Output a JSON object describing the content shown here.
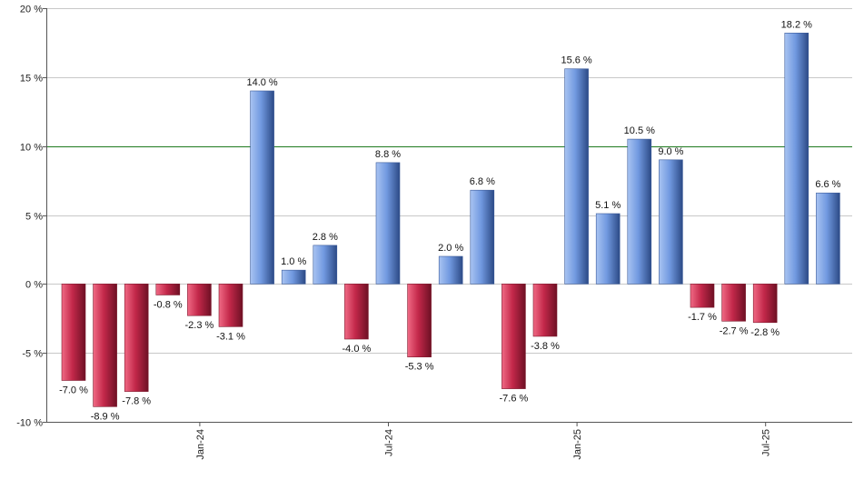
{
  "chart_data": {
    "type": "bar",
    "title": "",
    "xlabel": "",
    "ylabel": "",
    "ylim": [
      -10,
      20
    ],
    "y_ticks": [
      20,
      15,
      10,
      5,
      0,
      -5,
      -10
    ],
    "y_tick_suffix": " %",
    "grid": true,
    "reference_line": {
      "value": 10,
      "color": "#1e7a1e"
    },
    "positive_color": "#6f95dc",
    "negative_color": "#c3284a",
    "x_tick_labels": [
      {
        "label": "Jan-24",
        "index": 4
      },
      {
        "label": "Jul-24",
        "index": 10
      },
      {
        "label": "Jan-25",
        "index": 16
      },
      {
        "label": "Jul-25",
        "index": 22
      }
    ],
    "values": [
      -7.0,
      -8.9,
      -7.8,
      -0.8,
      -2.3,
      -3.1,
      14.0,
      1.0,
      2.8,
      -4.0,
      8.8,
      -5.3,
      2.0,
      6.8,
      -7.6,
      -3.8,
      15.6,
      5.1,
      10.5,
      9.0,
      -1.7,
      -2.7,
      -2.8,
      18.2,
      6.6
    ],
    "data_labels": [
      "-7.0 %",
      "-8.9 %",
      "-7.8 %",
      "-0.8 %",
      "-2.3 %",
      "-3.1 %",
      "14.0 %",
      "1.0 %",
      "2.8 %",
      "-4.0 %",
      "8.8 %",
      "-5.3 %",
      "2.0 %",
      "6.8 %",
      "-7.6 %",
      "-3.8 %",
      "15.6 %",
      "5.1 %",
      "10.5 %",
      "9.0 %",
      "-1.7 %",
      "-2.7 %",
      "-2.8 %",
      "18.2 %",
      "6.6 %"
    ]
  }
}
